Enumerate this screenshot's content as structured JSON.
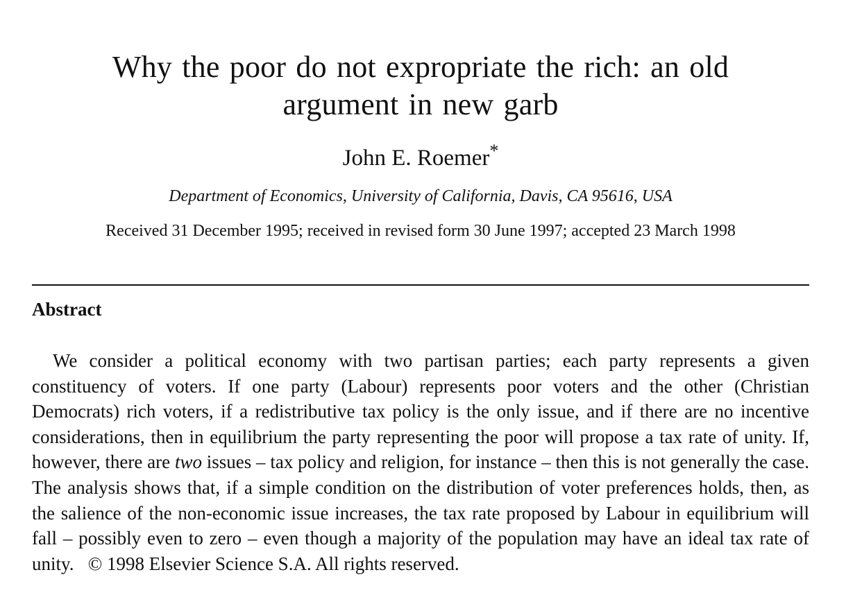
{
  "paper": {
    "title_line1": "Why the poor do not expropriate the rich: an old",
    "title_line2": "argument in new garb",
    "author": "John E. Roemer",
    "author_mark": "*",
    "affiliation": "Department of Economics, University of California, Davis, CA 95616, USA",
    "dates": "Received 31 December 1995; received in revised form 30 June 1997; accepted 23 March 1998"
  },
  "abstract": {
    "heading": "Abstract",
    "text_part1": "We consider a political economy with two partisan parties; each party represents a given constituency of voters. If one party (Labour) represents poor voters and the other (Christian Democrats) rich voters, if a redistributive tax policy is the only issue, and if there are no incentive considerations, then in equilibrium the party representing the poor will propose a tax rate of unity. If, however, there are ",
    "text_emphasis": "two",
    "text_part2": " issues – tax policy and religion, for instance – then this is not generally the case. The analysis shows that, if a simple condition on the distribution of voter preferences holds, then, as the salience of the non-economic issue increases, the tax rate proposed by Labour in equilibrium will fall – possibly even to zero – even though a majority of the population may have an ideal tax rate of unity.",
    "copyright": "© 1998 Elsevier Science S.A. All rights reserved."
  }
}
